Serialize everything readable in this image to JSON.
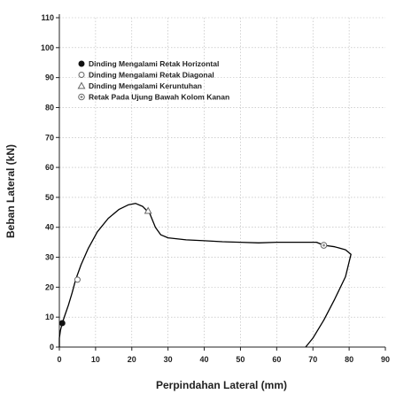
{
  "chart_data": {
    "type": "line",
    "title": "",
    "xlabel": "Perpindahan Lateral (mm)",
    "ylabel": "Beban Lateral (kN)",
    "xlim": [
      0,
      90
    ],
    "ylim": [
      0,
      110
    ],
    "x_ticks": [
      "0",
      "10",
      "20",
      "30",
      "40",
      "50",
      "60",
      "70",
      "80",
      "90"
    ],
    "y_ticks": [
      "0",
      "10",
      "20",
      "30",
      "40",
      "50",
      "60",
      "70",
      "80",
      "90",
      "100",
      "110"
    ],
    "grid": true,
    "legend_position": "top-left",
    "series": [
      {
        "color": "#000000",
        "points": [
          [
            0.0,
            0.0
          ],
          [
            0.0,
            3.0
          ],
          [
            0.3,
            5.5
          ],
          [
            0.8,
            8.0
          ],
          [
            1.5,
            10.5
          ],
          [
            2.5,
            14.0
          ],
          [
            3.5,
            18.0
          ],
          [
            4.5,
            22.5
          ],
          [
            6.0,
            27.5
          ],
          [
            8.0,
            33.0
          ],
          [
            10.5,
            38.5
          ],
          [
            13.5,
            43.0
          ],
          [
            16.5,
            46.0
          ],
          [
            19.0,
            47.5
          ],
          [
            21.0,
            48.0
          ],
          [
            23.0,
            47.0
          ],
          [
            25.0,
            44.5
          ],
          [
            26.5,
            40.0
          ],
          [
            28.0,
            37.5
          ],
          [
            30.0,
            36.5
          ],
          [
            35.0,
            35.8
          ],
          [
            40.0,
            35.5
          ],
          [
            45.0,
            35.2
          ],
          [
            50.0,
            35.0
          ],
          [
            55.0,
            34.8
          ],
          [
            60.0,
            35.0
          ],
          [
            65.0,
            35.0
          ],
          [
            68.5,
            35.0
          ],
          [
            71.0,
            35.0
          ],
          [
            73.0,
            34.0
          ],
          [
            76.0,
            33.5
          ],
          [
            79.0,
            32.5
          ],
          [
            80.5,
            31.0
          ],
          [
            79.0,
            23.5
          ],
          [
            76.0,
            16.0
          ],
          [
            73.0,
            9.0
          ],
          [
            70.0,
            3.0
          ],
          [
            68.0,
            0.0
          ]
        ]
      }
    ],
    "markers": [
      {
        "legend_index": 0,
        "x": 0.8,
        "y": 8.0
      },
      {
        "legend_index": 1,
        "x": 5.0,
        "y": 22.5
      },
      {
        "legend_index": 2,
        "x": 24.5,
        "y": 45.5
      },
      {
        "legend_index": 3,
        "x": 73.0,
        "y": 34.0
      }
    ],
    "legend": [
      {
        "label": "Dinding Mengalami Retak Horizontal",
        "symbol": "filled-circle"
      },
      {
        "label": "Dinding Mengalami Retak Diagonal",
        "symbol": "open-circle"
      },
      {
        "label": "Dinding Mengalami Keruntuhan",
        "symbol": "open-triangle"
      },
      {
        "label": "Retak Pada Ujung Bawah Kolom Kanan",
        "symbol": "dotted-circle"
      }
    ]
  }
}
